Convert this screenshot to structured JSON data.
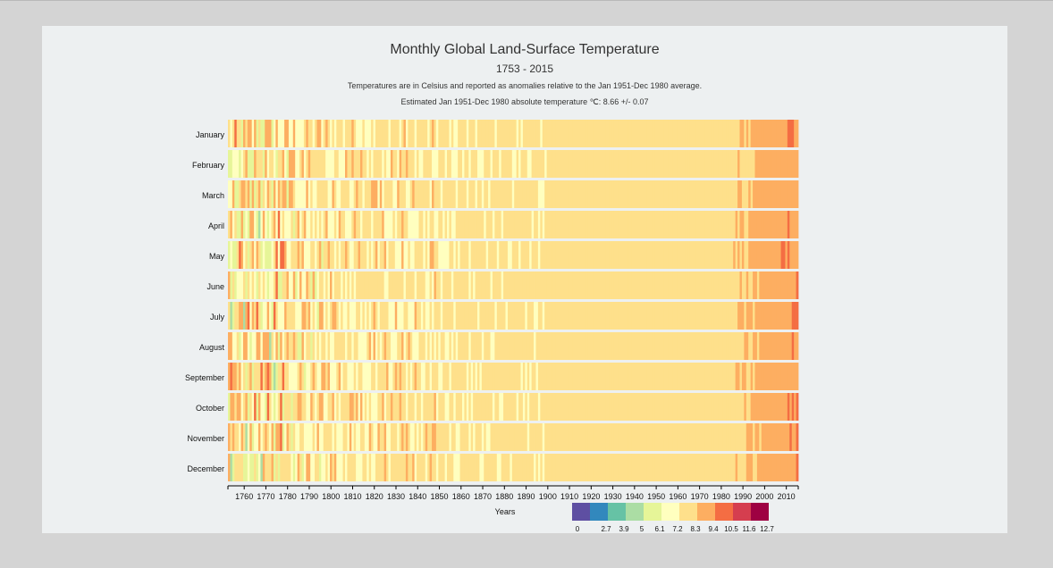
{
  "title": "Monthly Global Land-Surface Temperature",
  "subtitle": "1753 - 2015",
  "description": "Temperatures are in Celsius and reported as anomalies relative to the Jan 1951-Dec 1980 average.",
  "baseline": "Estimated Jan 1951-Dec 1980 absolute temperature ℃: 8.66 +/- 0.07",
  "chart_data": {
    "type": "heatmap",
    "x_range": [
      1753,
      2015
    ],
    "xlabel": "Years",
    "x_ticks": [
      1760,
      1770,
      1780,
      1790,
      1800,
      1810,
      1820,
      1830,
      1840,
      1850,
      1860,
      1870,
      1880,
      1890,
      1900,
      1910,
      1920,
      1930,
      1940,
      1950,
      1960,
      1970,
      1980,
      1990,
      2000,
      2010
    ],
    "months": [
      "January",
      "February",
      "March",
      "April",
      "May",
      "June",
      "July",
      "August",
      "September",
      "October",
      "November",
      "December"
    ],
    "legend_thresholds": [
      "0",
      "2.7",
      "3.9",
      "5",
      "6.1",
      "7.2",
      "8.3",
      "9.4",
      "10.5",
      "11.6",
      "12.7"
    ],
    "colors": [
      "#5e4fa2",
      "#3288bd",
      "#66c2a5",
      "#abdda4",
      "#e6f598",
      "#ffffbf",
      "#fee08b",
      "#fdae61",
      "#f46d43",
      "#d53e4f",
      "#9e0142"
    ],
    "approximate_anomaly_by_period": {
      "1753-1800": "highly variable (cool and warm extremes)",
      "1800-1900": "near or slightly below baseline",
      "1900-1950": "slightly above baseline",
      "1950-1980": "baseline",
      "1980-2015": "warming, up to about +2"
    }
  }
}
